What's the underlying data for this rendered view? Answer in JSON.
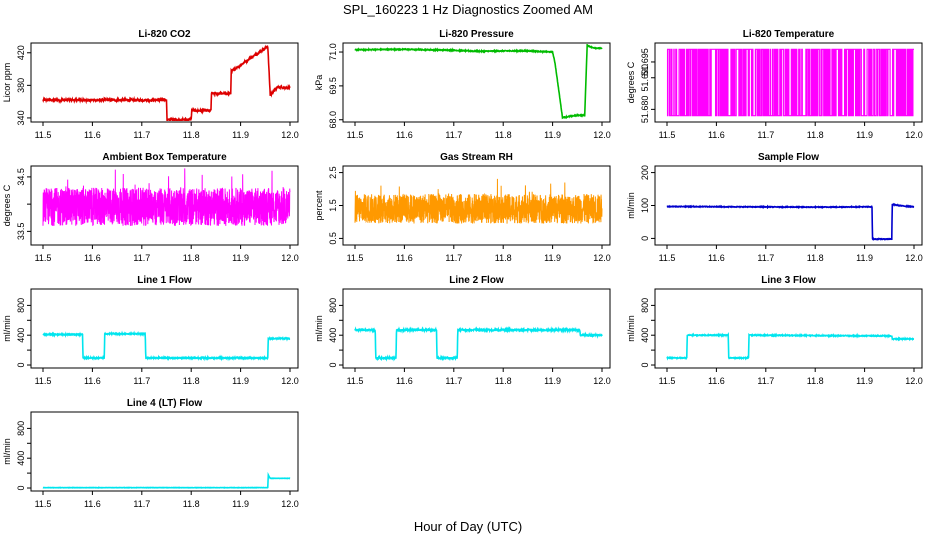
{
  "figure": {
    "title": "SPL_160223 1 Hz Diagnostics Zoomed AM",
    "xlabel": "Hour of Day (UTC)"
  },
  "chart_data": [
    {
      "type": "line",
      "title": "Li-820 CO2",
      "xlabel": "",
      "ylabel": "Licor ppm",
      "xlim": [
        11.5,
        12.0
      ],
      "ylim": [
        335,
        432
      ],
      "x_ticks": [
        "11.5",
        "11.6",
        "11.7",
        "11.8",
        "11.9",
        "12.0"
      ],
      "y_ticks": [
        340,
        380,
        420
      ],
      "y_tick_labels": [
        "340",
        "380",
        "420"
      ],
      "color": "#dd0000",
      "style": "step",
      "noise": 1.5,
      "series": [
        {
          "x": [
            11.5,
            11.75,
            11.751,
            11.8,
            11.801,
            11.84,
            11.841,
            11.88,
            11.881,
            11.955,
            11.96,
            11.975,
            12.0
          ],
          "y": [
            362,
            362,
            338,
            338,
            349,
            349,
            370,
            370,
            397,
            428,
            368,
            378,
            377
          ]
        }
      ]
    },
    {
      "type": "line",
      "title": "Li-820 Pressure",
      "xlabel": "",
      "ylabel": "kPa",
      "xlim": [
        11.5,
        12.0
      ],
      "ylim": [
        67.9,
        71.4
      ],
      "x_ticks": [
        "11.5",
        "11.6",
        "11.7",
        "11.8",
        "11.9",
        "12.0"
      ],
      "y_ticks": [
        68.0,
        69.5,
        71.0
      ],
      "y_tick_labels": [
        "68.0",
        "69.5",
        "71.0"
      ],
      "color": "#00bb00",
      "style": "line",
      "noise": 0.02,
      "series": [
        {
          "x": [
            11.5,
            11.6,
            11.7,
            11.75,
            11.8,
            11.85,
            11.9,
            11.905,
            11.92,
            11.95,
            11.965,
            11.97,
            11.98,
            12.0
          ],
          "y": [
            71.1,
            71.12,
            71.08,
            71.03,
            71.05,
            71.05,
            71.0,
            70.5,
            68.1,
            68.2,
            68.2,
            71.3,
            71.2,
            71.15
          ]
        }
      ]
    },
    {
      "type": "line",
      "title": "Li-820 Temperature",
      "xlabel": "",
      "ylabel": "degrees C",
      "xlim": [
        11.5,
        12.0
      ],
      "ylim": [
        51.676,
        51.701
      ],
      "x_ticks": [
        "11.5",
        "11.6",
        "11.7",
        "11.8",
        "11.9",
        "12.0"
      ],
      "y_ticks": [
        51.68,
        51.69,
        51.695
      ],
      "y_tick_labels": [
        "51.680",
        "51.690",
        "51.695"
      ],
      "color": "#ff00ff",
      "style": "toggle",
      "levels": [
        51.678,
        51.699
      ],
      "series": []
    },
    {
      "type": "line",
      "title": "Ambient Box Temperature",
      "xlabel": "",
      "ylabel": "degrees C",
      "xlim": [
        11.5,
        12.0
      ],
      "ylim": [
        33.25,
        34.7
      ],
      "x_ticks": [
        "11.5",
        "11.6",
        "11.7",
        "11.8",
        "11.9",
        "12.0"
      ],
      "y_ticks": [
        33.5,
        34.0,
        34.5
      ],
      "y_tick_labels": [
        "33.5",
        "",
        "34.5"
      ],
      "color": "#ff00ff",
      "style": "noisy",
      "center": 33.95,
      "spread": 0.35,
      "series": []
    },
    {
      "type": "scatter",
      "title": "Gas Stream RH",
      "xlabel": "",
      "ylabel": "percent",
      "xlim": [
        11.5,
        12.0
      ],
      "ylim": [
        0.3,
        2.7
      ],
      "x_ticks": [
        "11.5",
        "11.6",
        "11.7",
        "11.8",
        "11.9",
        "12.0"
      ],
      "y_ticks": [
        0.5,
        1.5,
        2.5
      ],
      "y_tick_labels": [
        "0.5",
        "1.5",
        "2.5"
      ],
      "color": "#ff9900",
      "style": "noisy",
      "center": 1.4,
      "spread": 0.45,
      "series": []
    },
    {
      "type": "line",
      "title": "Sample Flow",
      "xlabel": "",
      "ylabel": "ml/min",
      "xlim": [
        11.5,
        12.0
      ],
      "ylim": [
        -20,
        220
      ],
      "x_ticks": [
        "11.5",
        "11.6",
        "11.7",
        "11.8",
        "11.9",
        "12.0"
      ],
      "y_ticks": [
        0,
        100,
        200
      ],
      "y_tick_labels": [
        "0",
        "100",
        "200"
      ],
      "color": "#0000cc",
      "style": "step",
      "noise": 1,
      "series": [
        {
          "x": [
            11.5,
            11.8,
            11.9,
            11.915,
            11.916,
            11.955,
            11.956,
            11.975,
            12.0
          ],
          "y": [
            97,
            95,
            96,
            96,
            -2,
            -2,
            103,
            99,
            96
          ]
        }
      ]
    },
    {
      "type": "line",
      "title": "Line 1 Flow",
      "xlabel": "",
      "ylabel": "ml/min",
      "xlim": [
        11.5,
        12.0
      ],
      "ylim": [
        -40,
        1020
      ],
      "x_ticks": [
        "11.5",
        "11.6",
        "11.7",
        "11.8",
        "11.9",
        "12.0"
      ],
      "y_ticks": [
        0,
        200,
        400,
        600,
        800
      ],
      "y_tick_labels": [
        "0",
        "",
        "400",
        "",
        "800"
      ],
      "color": "#00e5ee",
      "style": "step",
      "noise": 8,
      "series": [
        {
          "x": [
            11.5,
            11.58,
            11.581,
            11.624,
            11.625,
            11.707,
            11.708,
            11.955,
            11.956,
            12.0
          ],
          "y": [
            410,
            410,
            95,
            95,
            420,
            420,
            95,
            95,
            355,
            355
          ]
        }
      ]
    },
    {
      "type": "line",
      "title": "Line 2 Flow",
      "xlabel": "",
      "ylabel": "ml/min",
      "xlim": [
        11.5,
        12.0
      ],
      "ylim": [
        -40,
        1020
      ],
      "x_ticks": [
        "11.5",
        "11.6",
        "11.7",
        "11.8",
        "11.9",
        "12.0"
      ],
      "y_ticks": [
        0,
        200,
        400,
        600,
        800
      ],
      "y_tick_labels": [
        "0",
        "",
        "400",
        "",
        "800"
      ],
      "color": "#00e5ee",
      "style": "step",
      "noise": 12,
      "series": [
        {
          "x": [
            11.5,
            11.541,
            11.542,
            11.583,
            11.584,
            11.665,
            11.666,
            11.707,
            11.708,
            11.955,
            11.956,
            12.0
          ],
          "y": [
            470,
            470,
            95,
            95,
            470,
            470,
            95,
            95,
            470,
            470,
            400,
            400
          ]
        }
      ]
    },
    {
      "type": "line",
      "title": "Line 3 Flow",
      "xlabel": "",
      "ylabel": "ml/min",
      "xlim": [
        11.5,
        12.0
      ],
      "ylim": [
        -40,
        1020
      ],
      "x_ticks": [
        "11.5",
        "11.6",
        "11.7",
        "11.8",
        "11.9",
        "12.0"
      ],
      "y_ticks": [
        0,
        200,
        400,
        600,
        800
      ],
      "y_tick_labels": [
        "0",
        "",
        "400",
        "",
        "800"
      ],
      "color": "#00e5ee",
      "style": "step",
      "noise": 6,
      "series": [
        {
          "x": [
            11.5,
            11.54,
            11.541,
            11.624,
            11.625,
            11.665,
            11.666,
            11.955,
            11.956,
            12.0
          ],
          "y": [
            95,
            95,
            400,
            400,
            95,
            95,
            400,
            390,
            350,
            350
          ]
        }
      ]
    },
    {
      "type": "line",
      "title": "Line 4 (LT) Flow",
      "xlabel": "",
      "ylabel": "ml/min",
      "xlim": [
        11.5,
        12.0
      ],
      "ylim": [
        -40,
        1020
      ],
      "x_ticks": [
        "11.5",
        "11.6",
        "11.7",
        "11.8",
        "11.9",
        "12.0"
      ],
      "y_ticks": [
        0,
        200,
        400,
        600,
        800
      ],
      "y_tick_labels": [
        "0",
        "",
        "400",
        "",
        "800"
      ],
      "color": "#00e5ee",
      "style": "step",
      "noise": 2,
      "series": [
        {
          "x": [
            11.5,
            11.955,
            11.956,
            11.96,
            11.961,
            12.0
          ],
          "y": [
            5,
            5,
            175,
            130,
            130,
            130
          ]
        }
      ]
    }
  ]
}
